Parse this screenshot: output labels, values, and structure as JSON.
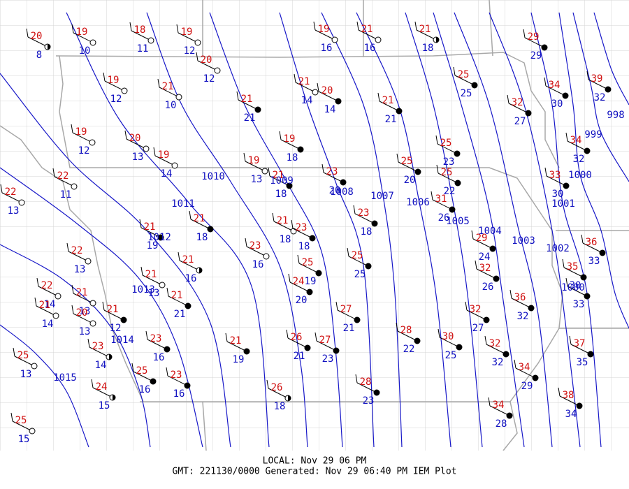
{
  "stations": [
    {
      "temp": 20,
      "dew": 8
    },
    {
      "temp": 19,
      "dew": 10
    },
    {
      "temp": 18,
      "dew": 11
    },
    {
      "temp": 19,
      "dew": 12
    },
    {
      "temp": 19,
      "dew": 16
    },
    {
      "temp": 21,
      "dew": 16
    },
    {
      "temp": 21,
      "dew": 18
    },
    {
      "temp": 29,
      "dew": 29
    },
    {
      "temp": 20,
      "dew": 12
    },
    {
      "temp": 19,
      "dew": 12
    },
    {
      "temp": 21,
      "dew": 10
    },
    {
      "temp": 21,
      "dew": 14
    },
    {
      "temp": 20,
      "dew": 14
    },
    {
      "temp": 21,
      "dew": 21
    },
    {
      "temp": 21,
      "dew": 21
    },
    {
      "temp": 25,
      "dew": 25
    },
    {
      "temp": 34,
      "dew": 30
    },
    {
      "temp": 39,
      "dew": 32
    },
    {
      "temp": 32,
      "dew": 27
    },
    {
      "temp": 19,
      "dew": 12
    },
    {
      "temp": 20,
      "dew": 13
    },
    {
      "temp": 19,
      "dew": 14
    },
    {
      "temp": 19,
      "dew": 18
    },
    {
      "temp": 19,
      "dew": 13
    },
    {
      "temp": 21,
      "dew": 18
    },
    {
      "temp": 23,
      "dew": 20
    },
    {
      "temp": 25,
      "dew": 20
    },
    {
      "temp": 25,
      "dew": 23
    },
    {
      "temp": 25,
      "dew": 22
    },
    {
      "temp": 31,
      "dew": 26
    },
    {
      "temp": 34,
      "dew": 32
    },
    {
      "temp": 33,
      "dew": 30
    },
    {
      "temp": 22,
      "dew": 11
    },
    {
      "temp": 22,
      "dew": 13
    },
    {
      "temp": 21,
      "dew": 19
    },
    {
      "temp": 21,
      "dew": 18
    },
    {
      "temp": 23,
      "dew": 18
    },
    {
      "temp": 21,
      "dew": 18
    },
    {
      "temp": 23,
      "dew": 18
    },
    {
      "temp": 23,
      "dew": 16
    },
    {
      "temp": 22,
      "dew": 13
    },
    {
      "temp": 21,
      "dew": 16
    },
    {
      "temp": 21,
      "dew": 13
    },
    {
      "temp": 25,
      "dew": 25
    },
    {
      "temp": 25,
      "dew": 19
    },
    {
      "temp": 24,
      "dew": 20
    },
    {
      "temp": 29,
      "dew": 24
    },
    {
      "temp": 32,
      "dew": 26
    },
    {
      "temp": 36,
      "dew": 33
    },
    {
      "temp": 35,
      "dew": 30
    },
    {
      "temp": 36,
      "dew": 32
    },
    {
      "dew": 33
    },
    {
      "temp": 22,
      "dew": 14
    },
    {
      "temp": 21,
      "dew": 13
    },
    {
      "temp": 21,
      "dew": 14
    },
    {
      "temp": 20,
      "dew": 13
    },
    {
      "temp": 21,
      "dew": 12
    },
    {
      "temp": 21,
      "dew": 21
    },
    {
      "temp": 27,
      "dew": 21
    },
    {
      "temp": 32,
      "dew": 27
    },
    {
      "temp": 23,
      "dew": 14
    },
    {
      "temp": 23,
      "dew": 16
    },
    {
      "temp": 21,
      "dew": 19
    },
    {
      "temp": 26,
      "dew": 21
    },
    {
      "temp": 27,
      "dew": 23
    },
    {
      "temp": 28,
      "dew": 22
    },
    {
      "temp": 30,
      "dew": 25
    },
    {
      "temp": 32,
      "dew": 32
    },
    {
      "temp": 37,
      "dew": 35
    },
    {
      "temp": 34,
      "dew": 29
    },
    {
      "temp": 25,
      "dew": 13
    },
    {
      "temp": 25,
      "dew": 16
    },
    {
      "temp": 23,
      "dew": 16
    },
    {
      "temp": 24,
      "dew": 15
    },
    {
      "temp": 26,
      "dew": 18
    },
    {
      "temp": 28,
      "dew": 23
    },
    {
      "temp": 34,
      "dew": 28
    },
    {
      "temp": 38,
      "dew": 34
    },
    {
      "temp": 25,
      "dew": 15
    }
  ],
  "isobars": [
    "1015",
    "1014",
    "1013",
    "1012",
    "1011",
    "1010",
    "1009",
    "1008",
    "1007",
    "1006",
    "1005",
    "1004",
    "1003",
    "1002",
    "1001",
    "1000",
    "999",
    "998",
    "1000"
  ],
  "footer": {
    "local": "LOCAL: Nov 29 06 PM",
    "gmt": "GMT: 221130/0000 Generated: Nov 29 06:40 PM IEM Plot"
  }
}
